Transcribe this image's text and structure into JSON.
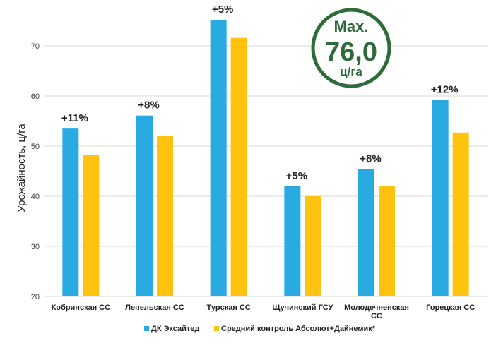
{
  "chart_data": {
    "type": "bar",
    "ylabel": "Урожайность, ц/га",
    "ylim": [
      20,
      77
    ],
    "yticks": [
      20,
      30,
      40,
      50,
      60,
      70
    ],
    "grid": true,
    "legend_position": "bottom",
    "categories": [
      [
        "Кобринская СС"
      ],
      [
        "Лепельская СС"
      ],
      [
        "Турская СС"
      ],
      [
        "Щучинский ГСУ"
      ],
      [
        "Молодечненская",
        "СС"
      ],
      [
        "Горецкая СС"
      ]
    ],
    "series": [
      {
        "name": "ДК Эксайтед",
        "color": "#29abe2",
        "values": [
          53.5,
          56.1,
          75.2,
          42.0,
          45.4,
          59.2
        ]
      },
      {
        "name": "Средний контроль Абсолют+Дайнемик*",
        "color": "#ffc20e",
        "values": [
          48.3,
          52.0,
          71.6,
          40.0,
          42.1,
          52.7
        ]
      }
    ],
    "data_labels": [
      "+11%",
      "+8%",
      "+5%",
      "+5%",
      "+8%",
      "+12%"
    ],
    "badge": {
      "top": "Max.",
      "value": "76,0",
      "unit": "ц/га",
      "color": "#2d6b3a"
    }
  }
}
